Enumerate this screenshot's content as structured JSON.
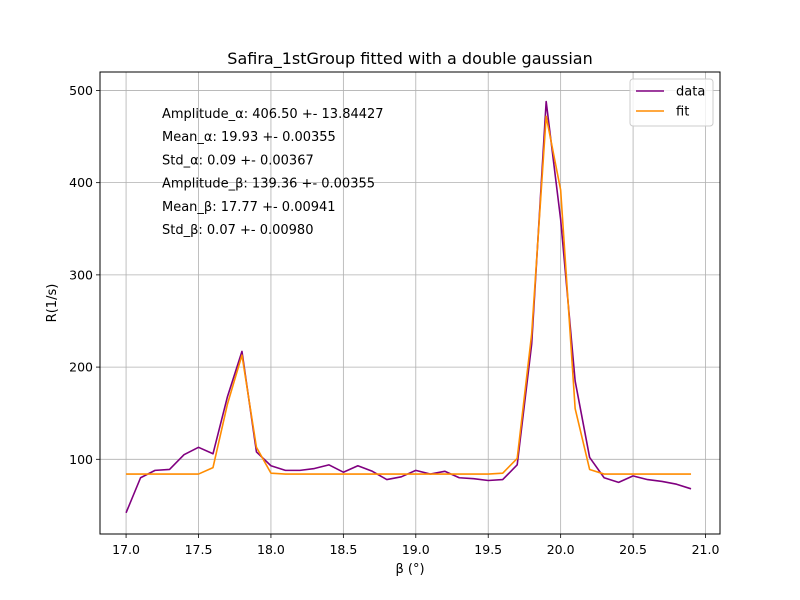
{
  "chart_data": {
    "type": "line",
    "title": "Safira_1stGroup fitted with a double gaussian",
    "xlabel": "β (°)",
    "ylabel": "R(1/s)",
    "xlim": [
      16.82,
      21.1
    ],
    "ylim": [
      19,
      520
    ],
    "xticks": [
      17.0,
      17.5,
      18.0,
      18.5,
      19.0,
      19.5,
      20.0,
      20.5,
      21.0
    ],
    "xtick_labels": [
      "17.0",
      "17.5",
      "18.0",
      "18.5",
      "19.0",
      "19.5",
      "20.0",
      "20.5",
      "21.0"
    ],
    "yticks": [
      100,
      200,
      300,
      400,
      500
    ],
    "ytick_labels": [
      "100",
      "200",
      "300",
      "400",
      "500"
    ],
    "grid": true,
    "legend_position": "top-right",
    "series": [
      {
        "name": "data",
        "color": "#800080",
        "x": [
          17.0,
          17.1,
          17.2,
          17.3,
          17.4,
          17.5,
          17.6,
          17.7,
          17.8,
          17.9,
          18.0,
          18.1,
          18.2,
          18.3,
          18.4,
          18.5,
          18.6,
          18.7,
          18.8,
          18.9,
          19.0,
          19.1,
          19.2,
          19.3,
          19.4,
          19.5,
          19.6,
          19.7,
          19.8,
          19.9,
          20.0,
          20.1,
          20.2,
          20.3,
          20.4,
          20.5,
          20.6,
          20.7,
          20.8,
          20.9
        ],
        "y": [
          42,
          80,
          88,
          89,
          105,
          113,
          106,
          168,
          217,
          108,
          93,
          88,
          88,
          90,
          94,
          86,
          93,
          87,
          78,
          81,
          88,
          84,
          87,
          80,
          79,
          77,
          78,
          94,
          225,
          488,
          360,
          185,
          102,
          80,
          75,
          82,
          78,
          76,
          73,
          68
        ]
      },
      {
        "name": "fit",
        "color": "#ff8c00",
        "x": [
          17.0,
          17.1,
          17.2,
          17.3,
          17.4,
          17.5,
          17.6,
          17.7,
          17.8,
          17.9,
          18.0,
          18.1,
          18.2,
          18.3,
          18.4,
          18.5,
          18.6,
          18.7,
          18.8,
          18.9,
          19.0,
          19.1,
          19.2,
          19.3,
          19.4,
          19.5,
          19.6,
          19.7,
          19.8,
          19.9,
          20.0,
          20.1,
          20.2,
          20.3,
          20.4,
          20.5,
          20.6,
          20.7,
          20.8,
          20.9
        ],
        "y": [
          84,
          84,
          84,
          84,
          84,
          84,
          91,
          160,
          213,
          113,
          85,
          84,
          84,
          84,
          84,
          84,
          84,
          84,
          84,
          84,
          84,
          84,
          84,
          84,
          84,
          84,
          85,
          101,
          236,
          472,
          392,
          155,
          89,
          84,
          84,
          84,
          84,
          84,
          84,
          84
        ]
      }
    ],
    "annotations": [
      "Amplitude_α: 406.50 +- 13.84427",
      "Mean_α: 19.93 +- 0.00355",
      "Std_α: 0.09 +- 0.00367",
      "Amplitude_β: 139.36 +- 0.00355",
      "Mean_β: 17.77 +- 0.00941",
      "Std_β: 0.07 +- 0.00980"
    ]
  }
}
